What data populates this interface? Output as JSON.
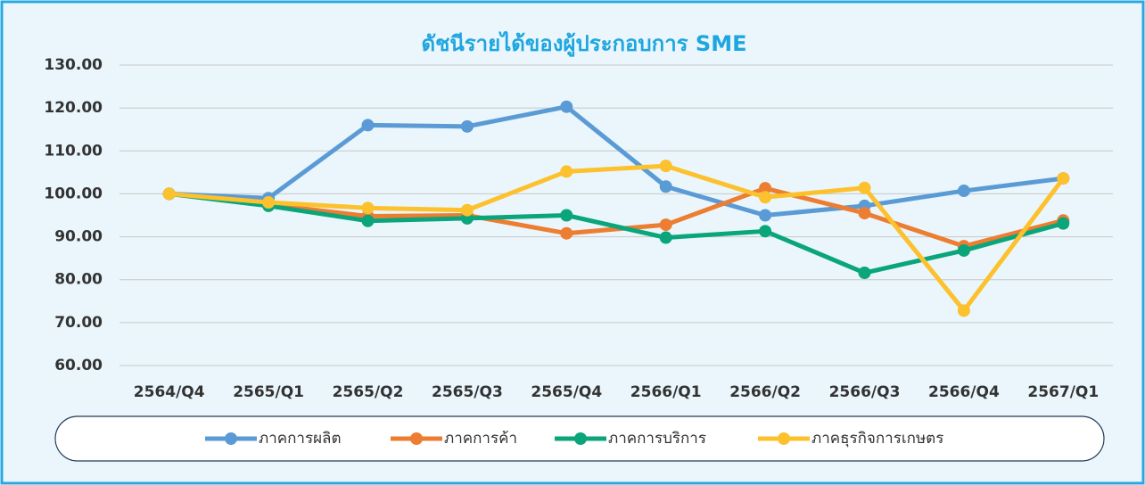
{
  "chart_data": {
    "type": "line",
    "title": "ดัชนีรายได้ของผู้ประกอบการ SME",
    "categories": [
      "2564/Q4",
      "2565/Q1",
      "2565/Q2",
      "2565/Q3",
      "2565/Q4",
      "2566/Q1",
      "2566/Q2",
      "2566/Q3",
      "2566/Q4",
      "2567/Q1"
    ],
    "series": [
      {
        "name": "ภาคการผลิต",
        "color": "#5b9bd5",
        "values": [
          100,
          99,
          116,
          115.7,
          120.3,
          101.7,
          95,
          97.2,
          100.7,
          103.6
        ]
      },
      {
        "name": "ภาคการค้า",
        "color": "#ed7d31",
        "values": [
          100,
          97.5,
          94.8,
          95,
          90.8,
          92.8,
          101.3,
          95.5,
          87.8,
          93.8
        ]
      },
      {
        "name": "ภาคการบริการ",
        "color": "#0aa57a",
        "values": [
          100,
          97.2,
          93.7,
          94.3,
          95,
          89.8,
          91.3,
          81.6,
          86.8,
          93.1
        ]
      },
      {
        "name": "ภาคธุรกิจการเกษตร",
        "color": "#fcc12d",
        "values": [
          100,
          98,
          96.7,
          96.2,
          105.2,
          106.5,
          99.2,
          101.4,
          72.8,
          103.6
        ]
      }
    ],
    "ylim": [
      60,
      130
    ],
    "yticks": [
      {
        "value": 60,
        "label": "60.00"
      },
      {
        "value": 70,
        "label": "70.00"
      },
      {
        "value": 80,
        "label": "80.00"
      },
      {
        "value": 90,
        "label": "90.00"
      },
      {
        "value": 100,
        "label": "100.00"
      },
      {
        "value": 110,
        "label": "110.00"
      },
      {
        "value": 120,
        "label": "120.00"
      },
      {
        "value": 130,
        "label": "130.00"
      }
    ],
    "grid": true,
    "legend": "bottom"
  }
}
